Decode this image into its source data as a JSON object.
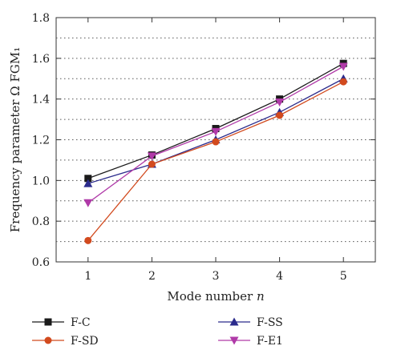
{
  "chart_data": {
    "type": "line",
    "xlabel": "Mode number n",
    "ylabel": "Frequency parameter Ω FGM₁",
    "x": [
      1,
      2,
      3,
      4,
      5
    ],
    "xlim": [
      0.5,
      5.5
    ],
    "ylim": [
      0.6,
      1.8
    ],
    "yticks": [
      0.6,
      0.8,
      1.0,
      1.2,
      1.4,
      1.6,
      1.8
    ],
    "ytick_labels": [
      "0.6",
      "0.8",
      "1.0",
      "1.2",
      "1.4",
      "1.6",
      "1.8"
    ],
    "xtick_labels": [
      "1",
      "2",
      "3",
      "4",
      "5"
    ],
    "grid": "horizontal dotted",
    "legend_position": "bottom",
    "series": [
      {
        "name": "F-C",
        "values": [
          1.01,
          1.125,
          1.255,
          1.4,
          1.575
        ],
        "color": "#1a1a1a",
        "marker": "square"
      },
      {
        "name": "F-SS",
        "values": [
          0.985,
          1.08,
          1.2,
          1.335,
          1.5
        ],
        "color": "#2b2b8c",
        "marker": "triangle-up"
      },
      {
        "name": "F-SD",
        "values": [
          0.705,
          1.08,
          1.19,
          1.32,
          1.485
        ],
        "color": "#d24a1e",
        "marker": "circle"
      },
      {
        "name": "F-E1",
        "values": [
          0.89,
          1.12,
          1.24,
          1.385,
          1.56
        ],
        "color": "#b03aa8",
        "marker": "triangle-down"
      }
    ]
  }
}
